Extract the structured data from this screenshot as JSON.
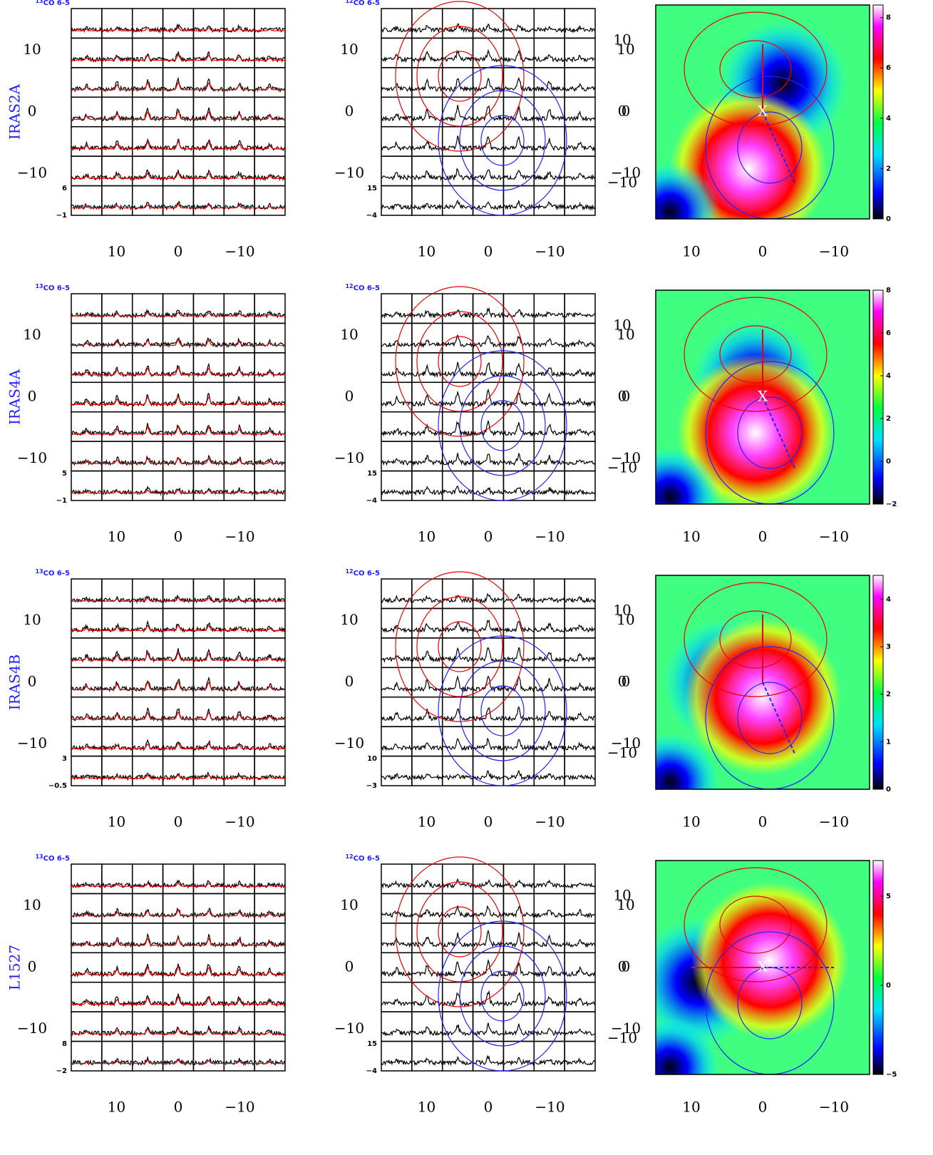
{
  "offset_ticks": [
    10,
    0,
    {
      "value": -10,
      "label": "−10"
    }
  ],
  "rows": [
    {
      "source": "IRAS2A",
      "spectra_13": {
        "isotope": "13",
        "line": "CO 6-5",
        "scale": [
          6,
          {
            "value": -1,
            "label": "−1"
          }
        ]
      },
      "spectra_12": {
        "isotope": "12",
        "line": "CO 6-5",
        "scale": [
          15,
          {
            "value": -4,
            "label": "−4"
          }
        ]
      },
      "map": {
        "marker": "X",
        "clim": [
          0,
          8.5
        ],
        "colorbar_ticks": [
          0,
          2,
          4,
          6,
          8
        ]
      }
    },
    {
      "source": "IRAS4A",
      "spectra_13": {
        "isotope": "13",
        "line": "CO 6-5",
        "scale": [
          5,
          {
            "value": -1,
            "label": "−1"
          }
        ]
      },
      "spectra_12": {
        "isotope": "12",
        "line": "CO 6-5",
        "scale": [
          15,
          {
            "value": -4,
            "label": "−4"
          }
        ]
      },
      "map": {
        "marker": "X",
        "clim": [
          -2,
          8
        ],
        "colorbar_ticks": [
          {
            "value": -2,
            "label": "−2"
          },
          0,
          2,
          4,
          6,
          8
        ]
      }
    },
    {
      "source": "IRAS4B",
      "spectra_13": {
        "isotope": "13",
        "line": "CO 6-5",
        "scale": [
          3,
          {
            "value": -0.5,
            "label": "−0.5"
          }
        ]
      },
      "spectra_12": {
        "isotope": "12",
        "line": "CO 6-5",
        "scale": [
          10,
          {
            "value": -3,
            "label": "−3"
          }
        ]
      },
      "map": {
        "clim": [
          0,
          4.5
        ],
        "colorbar_ticks": [
          0,
          1,
          2,
          3,
          4
        ]
      }
    },
    {
      "source": "L1527",
      "spectra_13": {
        "isotope": "13",
        "line": "CO 6-5",
        "scale": [
          8,
          {
            "value": -2,
            "label": "−2"
          }
        ]
      },
      "spectra_12": {
        "isotope": "12",
        "line": "CO 6-5",
        "scale": [
          15,
          {
            "value": -4,
            "label": "−4"
          }
        ]
      },
      "map": {
        "marker": "X",
        "clim": [
          -5,
          7
        ],
        "colorbar_ticks": [
          {
            "value": -5,
            "label": "−5"
          },
          0,
          5
        ]
      }
    }
  ]
}
